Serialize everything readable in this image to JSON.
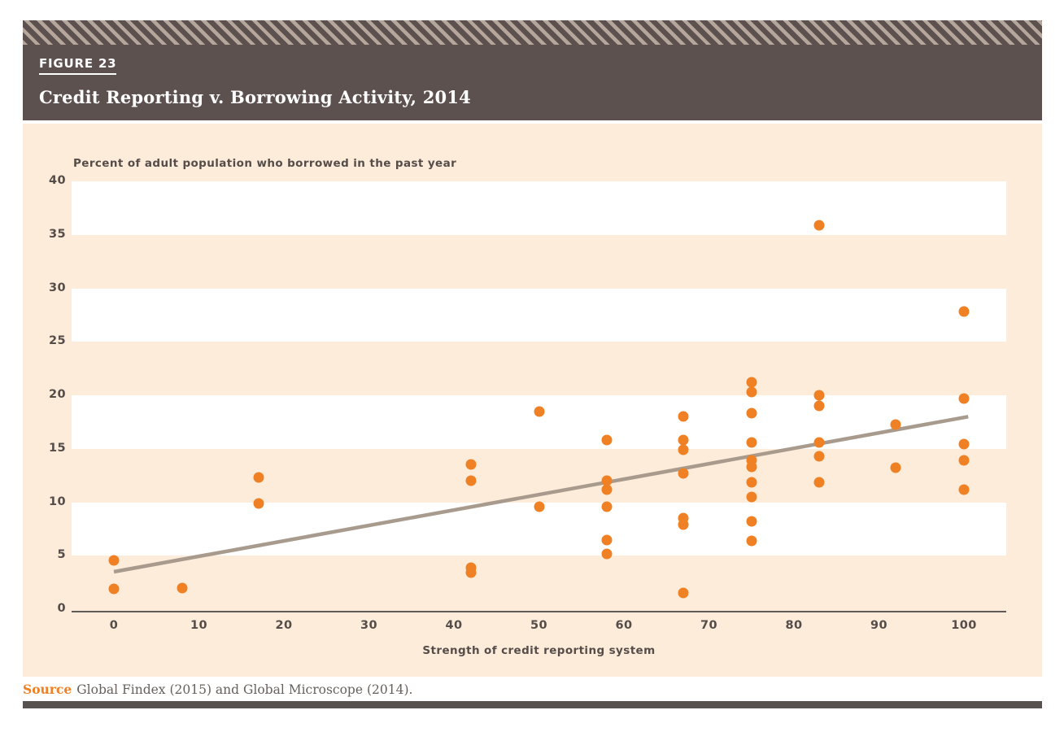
{
  "header": {
    "figure_label": "FIGURE 23",
    "title": "Credit Reporting v. Borrowing Activity, 2014"
  },
  "footer": {
    "source_label": "Source",
    "source_text": "Global Findex (2015) and Global Microscope (2014)."
  },
  "colors": {
    "header_background": "#5D5150",
    "header_stripe": "#B4A69B",
    "card_background": "#FDECDA",
    "band_white": "#FFFFFF",
    "point_orange": "#EF8023",
    "trend_gray": "#A89B8D",
    "axis_text": "#554D49",
    "axis_line": "#605B57",
    "source_orange": "#EF8023",
    "bottom_bar": "#575150"
  },
  "chart_data": {
    "type": "scatter",
    "title": "Credit Reporting v. Borrowing Activity, 2014",
    "xlabel": "Strength of credit reporting system",
    "ylabel": "Percent of adult population who borrowed in the past year",
    "xlim": [
      0,
      100
    ],
    "ylim": [
      0,
      40
    ],
    "x_ticks": [
      0,
      10,
      20,
      30,
      40,
      50,
      60,
      70,
      80,
      90,
      100
    ],
    "y_ticks": [
      0,
      5,
      10,
      15,
      20,
      25,
      30,
      35,
      40
    ],
    "grid": "alternating horizontal bands, white on peach, every 5 units",
    "legend": "none",
    "point_color": "#EF8023",
    "trend_color": "#A89B8D",
    "trendline": {
      "x1": 0,
      "y1": 3.5,
      "x2": 100.5,
      "y2": 18.0
    },
    "points": [
      {
        "x": 0,
        "y": 4.6
      },
      {
        "x": 0,
        "y": 1.9
      },
      {
        "x": 8,
        "y": 2.0
      },
      {
        "x": 17,
        "y": 12.3
      },
      {
        "x": 17,
        "y": 9.9
      },
      {
        "x": 42,
        "y": 13.5
      },
      {
        "x": 42,
        "y": 12.0
      },
      {
        "x": 42,
        "y": 3.9
      },
      {
        "x": 42,
        "y": 3.4
      },
      {
        "x": 50,
        "y": 18.5
      },
      {
        "x": 50,
        "y": 9.6
      },
      {
        "x": 58,
        "y": 15.8
      },
      {
        "x": 58,
        "y": 12.0
      },
      {
        "x": 58,
        "y": 11.2
      },
      {
        "x": 58,
        "y": 9.6
      },
      {
        "x": 58,
        "y": 6.5
      },
      {
        "x": 58,
        "y": 5.2
      },
      {
        "x": 67,
        "y": 18.0
      },
      {
        "x": 67,
        "y": 15.8
      },
      {
        "x": 67,
        "y": 14.9
      },
      {
        "x": 67,
        "y": 12.7
      },
      {
        "x": 67,
        "y": 8.5
      },
      {
        "x": 67,
        "y": 7.9
      },
      {
        "x": 67,
        "y": 1.5
      },
      {
        "x": 75,
        "y": 21.2
      },
      {
        "x": 75,
        "y": 20.3
      },
      {
        "x": 75,
        "y": 18.3
      },
      {
        "x": 75,
        "y": 15.6
      },
      {
        "x": 75,
        "y": 13.9
      },
      {
        "x": 75,
        "y": 13.3
      },
      {
        "x": 75,
        "y": 11.9
      },
      {
        "x": 75,
        "y": 10.5
      },
      {
        "x": 75,
        "y": 8.2
      },
      {
        "x": 75,
        "y": 6.4
      },
      {
        "x": 83,
        "y": 35.9
      },
      {
        "x": 83,
        "y": 20.0
      },
      {
        "x": 83,
        "y": 19.0
      },
      {
        "x": 83,
        "y": 15.6
      },
      {
        "x": 83,
        "y": 14.3
      },
      {
        "x": 83,
        "y": 11.9
      },
      {
        "x": 92,
        "y": 17.3
      },
      {
        "x": 92,
        "y": 13.2
      },
      {
        "x": 100,
        "y": 27.8
      },
      {
        "x": 100,
        "y": 19.7
      },
      {
        "x": 100,
        "y": 15.4
      },
      {
        "x": 100,
        "y": 13.9
      },
      {
        "x": 100,
        "y": 11.2
      }
    ]
  }
}
